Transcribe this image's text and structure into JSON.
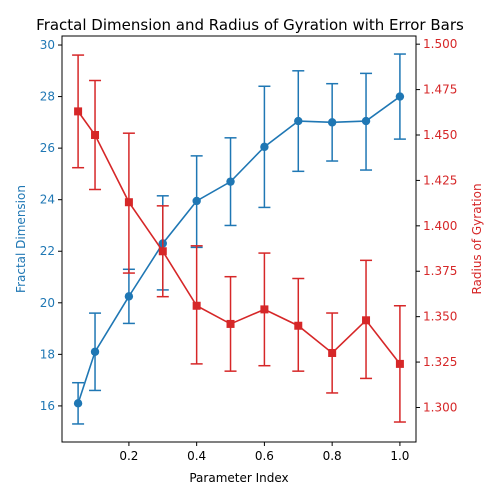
{
  "chart_data": {
    "type": "line",
    "title": "Fractal Dimension and Radius of Gyration with Error Bars",
    "xlabel": "Parameter Index",
    "x": [
      0.05,
      0.1,
      0.2,
      0.3,
      0.4,
      0.5,
      0.6,
      0.7,
      0.8,
      0.9,
      1.0
    ],
    "xlim": [
      0.0025,
      1.0475
    ],
    "xticks": [
      0.2,
      0.4,
      0.6,
      0.8,
      1.0
    ],
    "xtick_labels": [
      "0.2",
      "0.4",
      "0.6",
      "0.8",
      "1.0"
    ],
    "grid": false,
    "series": [
      {
        "name": "Fractal Dimension",
        "axis": "left",
        "color": "#1f77b4",
        "marker": "circle",
        "values": [
          16.1,
          18.1,
          20.25,
          22.3,
          23.95,
          24.7,
          26.05,
          27.05,
          27.0,
          27.05,
          28.0
        ],
        "err_low": [
          15.3,
          16.6,
          19.2,
          20.5,
          22.15,
          23.0,
          23.7,
          25.1,
          25.5,
          25.15,
          26.35
        ],
        "err_high": [
          16.9,
          19.6,
          21.3,
          24.15,
          25.7,
          26.4,
          28.4,
          29.0,
          28.5,
          28.9,
          29.65
        ]
      },
      {
        "name": "Radius of Gyration",
        "axis": "right",
        "color": "#d62728",
        "marker": "square",
        "values": [
          1.463,
          1.45,
          1.413,
          1.386,
          1.356,
          1.346,
          1.354,
          1.345,
          1.33,
          1.348,
          1.324
        ],
        "err_low": [
          1.432,
          1.42,
          1.374,
          1.361,
          1.324,
          1.32,
          1.323,
          1.32,
          1.308,
          1.316,
          1.292
        ],
        "err_high": [
          1.494,
          1.48,
          1.451,
          1.411,
          1.389,
          1.372,
          1.385,
          1.371,
          1.352,
          1.381,
          1.356
        ]
      }
    ],
    "y_left": {
      "label": "Fractal Dimension",
      "color": "#1f77b4",
      "lim": [
        14.6,
        30.35
      ],
      "ticks": [
        16,
        18,
        20,
        22,
        24,
        26,
        28,
        30
      ],
      "tick_labels": [
        "16",
        "18",
        "20",
        "22",
        "24",
        "26",
        "28",
        "30"
      ]
    },
    "y_right": {
      "label": "Radius of Gyration",
      "color": "#d62728",
      "lim": [
        1.281,
        1.5045
      ],
      "ticks": [
        1.3,
        1.325,
        1.35,
        1.375,
        1.4,
        1.425,
        1.45,
        1.475,
        1.5
      ],
      "tick_labels": [
        "1.300",
        "1.325",
        "1.350",
        "1.375",
        "1.400",
        "1.425",
        "1.450",
        "1.475",
        "1.500"
      ]
    }
  }
}
